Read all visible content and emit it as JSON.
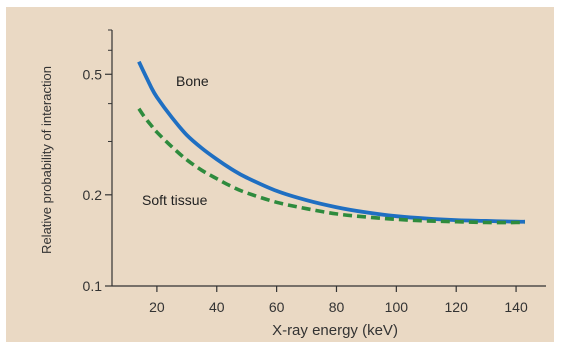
{
  "chart_data": {
    "type": "line",
    "title": "",
    "xlabel": "X-ray energy (keV)",
    "ylabel": "Relative probability of interaction",
    "x_ticks": [
      20,
      40,
      60,
      80,
      100,
      120,
      140
    ],
    "y_ticks": [
      0.1,
      0.2,
      0.5
    ],
    "y_tick_labels": [
      "0.1",
      "0.2",
      "0.5"
    ],
    "y_scale": "log",
    "xlim": [
      5,
      150
    ],
    "ylim": [
      0.1,
      0.7
    ],
    "grid": false,
    "legend": "none",
    "background_color": "#ead9c4",
    "series": [
      {
        "name": "Bone",
        "color": "#1f6fc2",
        "line_style": "solid",
        "x": [
          14,
          16,
          18,
          20,
          25,
          30,
          35,
          40,
          45,
          50,
          60,
          70,
          80,
          90,
          100,
          110,
          120,
          130,
          140,
          143
        ],
        "y": [
          0.55,
          0.5,
          0.455,
          0.42,
          0.36,
          0.315,
          0.285,
          0.262,
          0.243,
          0.228,
          0.206,
          0.192,
          0.182,
          0.175,
          0.17,
          0.167,
          0.165,
          0.164,
          0.163,
          0.163
        ]
      },
      {
        "name": "Soft tissue",
        "color": "#2e8b3d",
        "line_style": "dashed",
        "x": [
          14,
          16,
          18,
          20,
          25,
          30,
          35,
          40,
          45,
          50,
          60,
          70,
          80,
          90,
          100,
          110,
          120,
          130,
          140,
          143
        ],
        "y": [
          0.385,
          0.36,
          0.34,
          0.322,
          0.288,
          0.261,
          0.241,
          0.226,
          0.213,
          0.203,
          0.189,
          0.18,
          0.173,
          0.169,
          0.166,
          0.164,
          0.163,
          0.162,
          0.162,
          0.162
        ]
      }
    ]
  }
}
